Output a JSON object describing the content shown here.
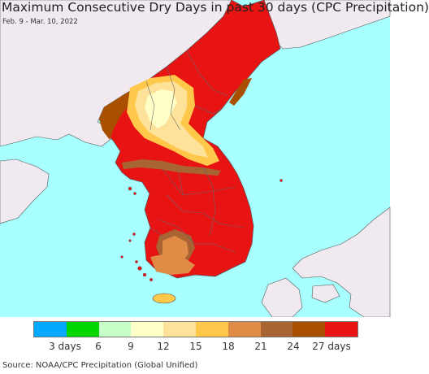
{
  "header": {
    "title": "Maximum Consecutive Dry Days in past 30 days (CPC Precipitation)",
    "date_range": "Feb. 9 - Mar. 10, 2022"
  },
  "colors": {
    "ocean": "#a8ffff",
    "land_outside": "#f0eaf0",
    "boundary": "#555555"
  },
  "legend": {
    "colors": [
      "#00a8ff",
      "#00d600",
      "#c8ffc8",
      "#ffffc8",
      "#ffe29a",
      "#ffc84a",
      "#e08c46",
      "#a86432",
      "#a85000",
      "#e81414"
    ],
    "labels": [
      "3 days",
      "6",
      "9",
      "12",
      "15",
      "18",
      "21",
      "24",
      "27 days"
    ]
  },
  "footer": {
    "source": "Source: NOAA/CPC Precipitation (Global Unified)"
  }
}
